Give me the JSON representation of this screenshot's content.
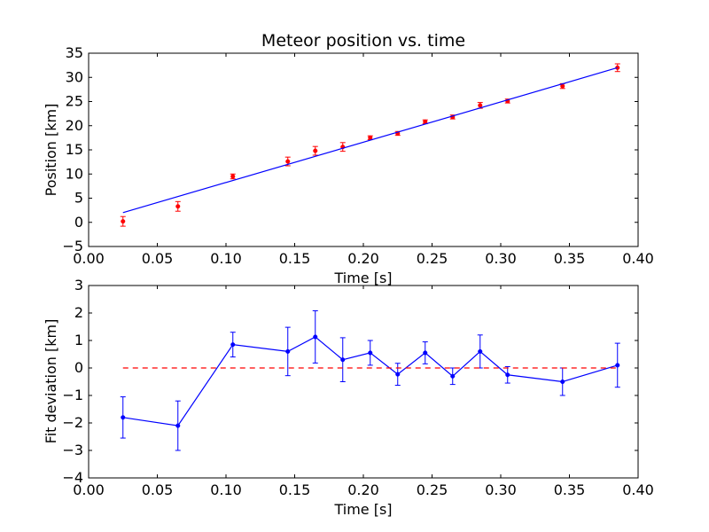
{
  "chart_data": [
    {
      "type": "scatter",
      "title": "Meteor position vs. time",
      "xlabel": "Time [s]",
      "ylabel": "Position [km]",
      "xlim": [
        0.0,
        0.4
      ],
      "ylim": [
        -5,
        35
      ],
      "xticks": [
        "0.00",
        "0.05",
        "0.10",
        "0.15",
        "0.20",
        "0.25",
        "0.30",
        "0.35",
        "0.40"
      ],
      "yticks": [
        "−5",
        "0",
        "5",
        "10",
        "15",
        "20",
        "25",
        "30",
        "35"
      ],
      "grid": false,
      "series": [
        {
          "kind": "points_with_errorbars",
          "color": "#ff0000",
          "x": [
            0.025,
            0.065,
            0.105,
            0.145,
            0.165,
            0.185,
            0.205,
            0.225,
            0.245,
            0.265,
            0.285,
            0.305,
            0.345,
            0.385
          ],
          "y": [
            0.2,
            3.3,
            9.5,
            12.6,
            14.8,
            15.6,
            17.5,
            18.4,
            20.8,
            21.8,
            24.2,
            25.1,
            28.2,
            32.0
          ],
          "err": [
            1.0,
            1.0,
            0.5,
            0.9,
            0.9,
            0.9,
            0.4,
            0.4,
            0.4,
            0.4,
            0.6,
            0.4,
            0.5,
            0.8
          ]
        },
        {
          "kind": "fit_line",
          "color": "#0000ff",
          "x": [
            0.025,
            0.385
          ],
          "y": [
            2.0,
            32.0
          ]
        }
      ]
    },
    {
      "type": "line",
      "title": "",
      "xlabel": "Time [s]",
      "ylabel": "Fit deviation [km]",
      "xlim": [
        0.0,
        0.4
      ],
      "ylim": [
        -4,
        3
      ],
      "xticks": [
        "0.00",
        "0.05",
        "0.10",
        "0.15",
        "0.20",
        "0.25",
        "0.30",
        "0.35",
        "0.40"
      ],
      "yticks": [
        "−4",
        "−3",
        "−2",
        "−1",
        "0",
        "1",
        "2",
        "3"
      ],
      "grid": false,
      "series": [
        {
          "kind": "line_with_errorbars",
          "color": "#0000ff",
          "x": [
            0.025,
            0.065,
            0.105,
            0.145,
            0.165,
            0.185,
            0.205,
            0.225,
            0.245,
            0.265,
            0.285,
            0.305,
            0.345,
            0.385
          ],
          "y": [
            -1.8,
            -2.1,
            0.85,
            0.6,
            1.13,
            0.3,
            0.55,
            -0.23,
            0.55,
            -0.3,
            0.6,
            -0.25,
            -0.5,
            0.1
          ],
          "err": [
            0.75,
            0.9,
            0.45,
            0.88,
            0.95,
            0.8,
            0.45,
            0.4,
            0.4,
            0.3,
            0.6,
            0.3,
            0.5,
            0.8
          ]
        },
        {
          "kind": "reference_line",
          "color": "#ff0000",
          "style": "dashed",
          "x": [
            0.025,
            0.385
          ],
          "y": [
            0.0,
            0.0
          ]
        }
      ]
    }
  ]
}
